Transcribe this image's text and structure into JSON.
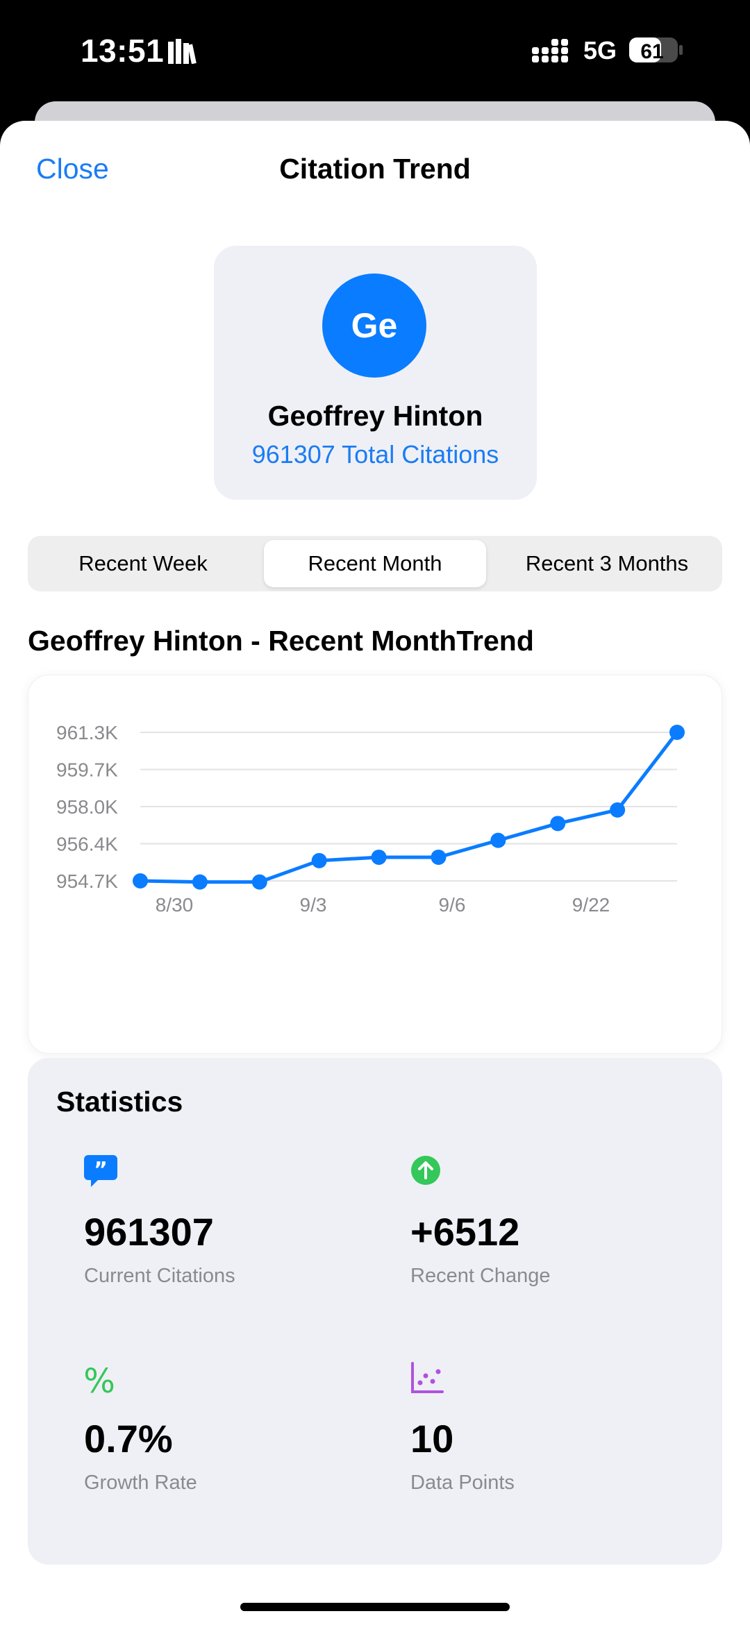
{
  "status_bar": {
    "time": "13:51",
    "network": "5G",
    "battery_level": "61"
  },
  "nav": {
    "close_label": "Close",
    "title": "Citation Trend"
  },
  "profile": {
    "initials": "Ge",
    "name": "Geoffrey Hinton",
    "total_citations": "961307 Total Citations",
    "avatar_color": "#0A7CFF"
  },
  "tabs": [
    {
      "label": "Recent Week",
      "active": false
    },
    {
      "label": "Recent Month",
      "active": true
    },
    {
      "label": "Recent 3 Months",
      "active": false
    }
  ],
  "chart_title": "Geoffrey Hinton - Recent MonthTrend",
  "chart_data": {
    "type": "line",
    "title": "Geoffrey Hinton - Recent MonthTrend",
    "xlabel": "",
    "ylabel": "",
    "y_tick_labels": [
      "961.3K",
      "959.7K",
      "958.0K",
      "956.4K",
      "954.7K"
    ],
    "x_tick_labels": [
      "8/30",
      "9/3",
      "9/6",
      "9/22"
    ],
    "ylim": [
      954700,
      961300
    ],
    "grid": true,
    "line_color": "#0A7CFF",
    "series": [
      {
        "values": [
          954700,
          954650,
          954650,
          955600,
          955750,
          955750,
          956500,
          957250,
          957850,
          961300
        ]
      }
    ]
  },
  "statistics": {
    "title": "Statistics",
    "items": [
      {
        "value": "961307",
        "label": "Current Citations",
        "icon": "quote-bubble-icon",
        "color": "#0A7CFF"
      },
      {
        "value": "+6512",
        "label": "Recent Change",
        "icon": "arrow-up-circle-icon",
        "color": "#34C759"
      },
      {
        "value": "0.7%",
        "label": "Growth Rate",
        "icon": "percent-icon",
        "color": "#34C759"
      },
      {
        "value": "10",
        "label": "Data Points",
        "icon": "scatter-chart-icon",
        "color": "#AF52DE"
      }
    ]
  }
}
